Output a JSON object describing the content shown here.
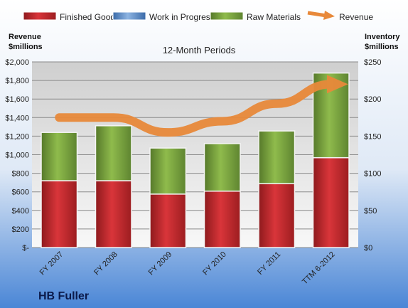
{
  "chart_data": {
    "type": "bar",
    "title": "12-Month Periods",
    "company": "HB Fuller",
    "left_axis_title": [
      "Revenue",
      "$millions"
    ],
    "right_axis_title": [
      "Inventory",
      "$millions"
    ],
    "categories": [
      "FY 2007",
      "FY 2008",
      "FY 2009",
      "FY 2010",
      "FY 2011",
      "TTM 6-2012"
    ],
    "left_ticks": [
      "$-",
      "$200",
      "$400",
      "$600",
      "$800",
      "$1,000",
      "$1,200",
      "$1,400",
      "$1,600",
      "$1,800",
      "$2,000"
    ],
    "right_ticks": [
      "$0",
      "$50",
      "$100",
      "$150",
      "$200",
      "$250"
    ],
    "ylim_left": [
      0,
      2000
    ],
    "ylim_right": [
      0,
      250
    ],
    "stacked": true,
    "grid": true,
    "legend_position": "top",
    "series": [
      {
        "name": "Finished Goods",
        "axis": "right",
        "color": "#c0262a",
        "values": [
          90,
          90,
          72,
          76,
          86,
          121
        ]
      },
      {
        "name": "Work in Progress",
        "axis": "right",
        "color": "#4f81bd",
        "values": [
          0,
          0,
          0,
          0,
          0,
          0
        ]
      },
      {
        "name": "Raw Materials",
        "axis": "right",
        "color": "#77a23b",
        "values": [
          65,
          74,
          62,
          64,
          71,
          114
        ]
      },
      {
        "name": "Revenue",
        "axis": "left",
        "type": "line",
        "color": "#e8893a",
        "values": [
          1400,
          1400,
          1240,
          1360,
          1550,
          1760
        ]
      }
    ]
  }
}
